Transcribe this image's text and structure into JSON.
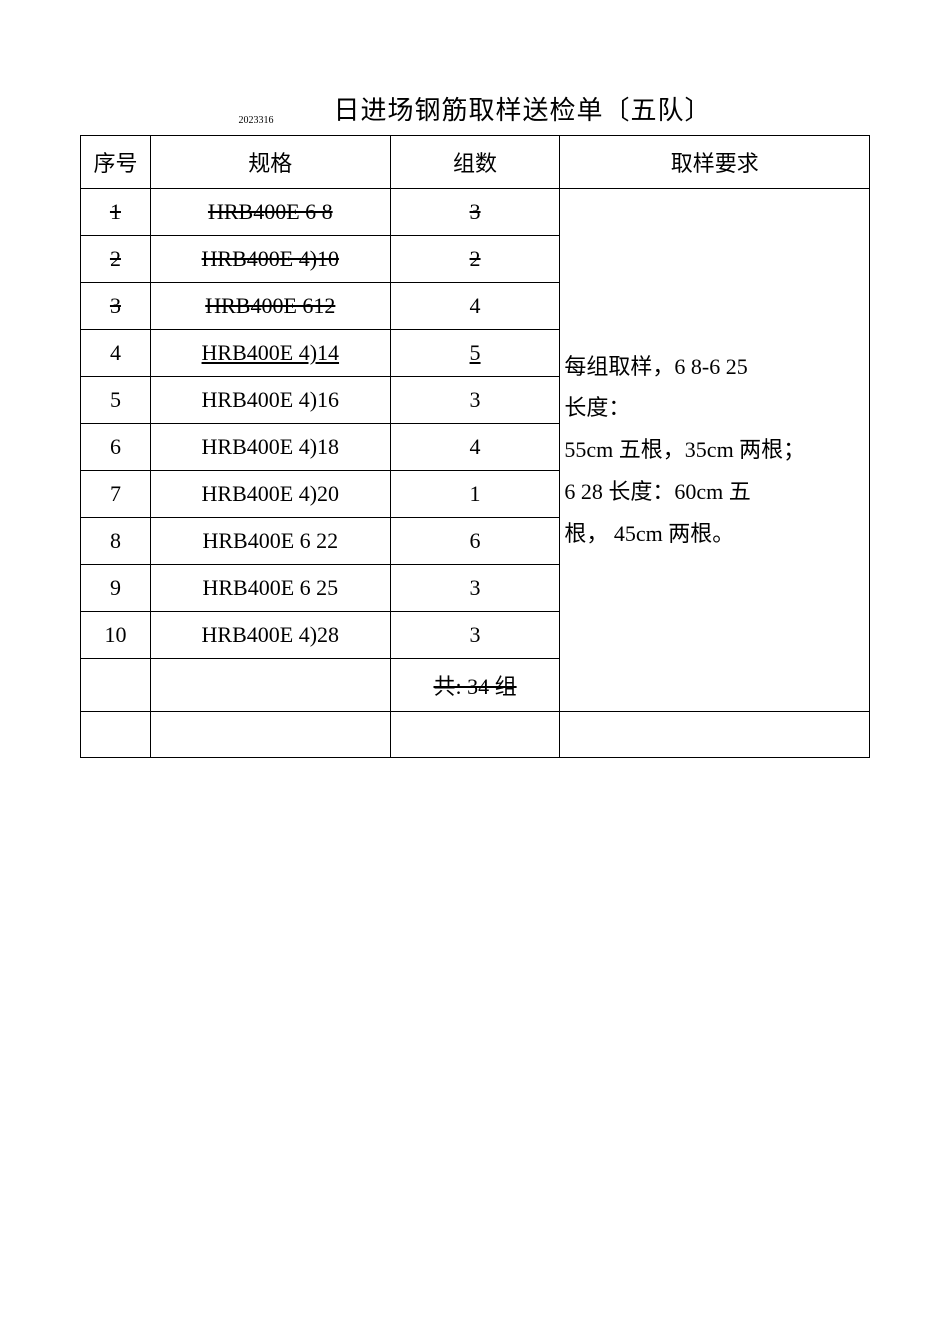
{
  "title": {
    "date_label": "2023316",
    "main": "日进场钢筋取样送检单〔五队〕"
  },
  "headers": {
    "seq": "序号",
    "spec": "规格",
    "count": "组数",
    "req": "取样要求"
  },
  "rows": [
    {
      "seq": "1",
      "spec": "HRB400E  6 8",
      "count": "3",
      "styles": {
        "seq": "strike",
        "spec": "strike",
        "count": "strike"
      }
    },
    {
      "seq": "2",
      "spec": "HRB400E  4)10",
      "count": "2",
      "styles": {
        "seq": "strike",
        "spec": "strike",
        "count": "strike"
      }
    },
    {
      "seq": "3",
      "spec": "HRB400E  612",
      "count": "4",
      "styles": {
        "seq": "strike",
        "spec": "strike",
        "count": ""
      }
    },
    {
      "seq": "4",
      "spec": "HRB400E  4)14",
      "count": "5",
      "styles": {
        "seq": "",
        "spec": "underline",
        "count": "underline"
      }
    },
    {
      "seq": "5",
      "spec": "HRB400E  4)16",
      "count": "3",
      "styles": {
        "seq": "",
        "spec": "",
        "count": ""
      }
    },
    {
      "seq": "6",
      "spec": "HRB400E  4)18",
      "count": "4",
      "styles": {
        "seq": "",
        "spec": "",
        "count": ""
      }
    },
    {
      "seq": "7",
      "spec": "HRB400E  4)20",
      "count": "1",
      "styles": {
        "seq": "",
        "spec": "",
        "count": ""
      }
    },
    {
      "seq": "8",
      "spec": "HRB400E  6 22",
      "count": "6",
      "styles": {
        "seq": "",
        "spec": "",
        "count": ""
      }
    },
    {
      "seq": "9",
      "spec": "HRB400E  6 25",
      "count": "3",
      "styles": {
        "seq": "",
        "spec": "",
        "count": ""
      }
    },
    {
      "seq": "10",
      "spec": "HRB400E  4)28",
      "count": "3",
      "styles": {
        "seq": "",
        "spec": "",
        "count": ""
      }
    }
  ],
  "total": {
    "label": "共: 34 组"
  },
  "requirement": {
    "line1": "每组取样，6 8-6 25",
    "line2": "长度：",
    "line3": "55cm 五根，35cm 两根；",
    "line4": "6 28 长度：60cm 五",
    "line5": "根， 45cm 两根。"
  }
}
